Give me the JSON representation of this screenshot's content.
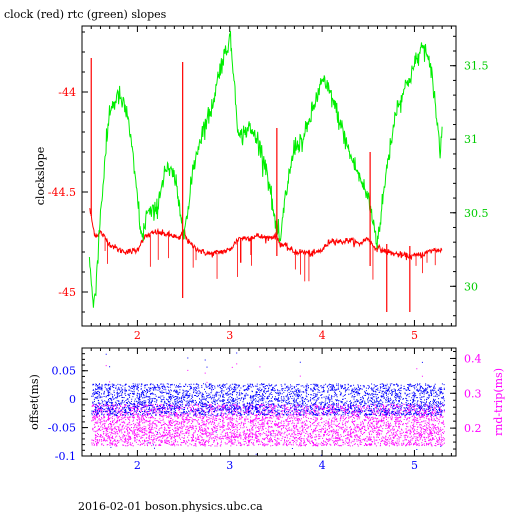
{
  "title": "clock (red) rtc (green) slopes",
  "footer": "2016-02-01 boson.physics.ubc.ca",
  "colors": {
    "clock": "#ff0000",
    "rtc": "#00ee00",
    "offset": "#0000ff",
    "rnd_trip": "#ff00ff",
    "axis": "#000000"
  },
  "chart_data": [
    {
      "type": "line",
      "title": "clock (red) rtc (green) slopes",
      "xlim": [
        1.4,
        5.45
      ],
      "x_ticks": [
        2,
        3,
        4,
        5
      ],
      "x_tick_labels": [
        "2",
        "3",
        "4",
        "5"
      ],
      "y_left": {
        "label": "clockslope",
        "lim": [
          -45.17,
          -43.67
        ],
        "ticks": [
          -44,
          -44.5,
          -45
        ],
        "tick_labels": [
          "-44",
          "-44.5",
          "-45"
        ]
      },
      "y_right": {
        "label": "",
        "lim": [
          29.73,
          31.77
        ],
        "ticks": [
          30,
          30.5,
          31,
          31.5
        ],
        "tick_labels": [
          "30",
          "30.5",
          "31",
          "31.5"
        ]
      },
      "series": [
        {
          "key": "clock",
          "axis": "left",
          "x": [
            1.48,
            1.5,
            1.52,
            1.55,
            1.6,
            1.7,
            1.8,
            1.9,
            2.0,
            2.05,
            2.1,
            2.2,
            2.3,
            2.4,
            2.45,
            2.5,
            2.55,
            2.6,
            2.7,
            2.8,
            2.9,
            3.0,
            3.1,
            3.2,
            3.3,
            3.4,
            3.5,
            3.55,
            3.6,
            3.7,
            3.8,
            3.9,
            4.0,
            4.1,
            4.2,
            4.3,
            4.4,
            4.5,
            4.55,
            4.6,
            4.7,
            4.8,
            4.9,
            5.0,
            5.1,
            5.2,
            5.3
          ],
          "y": [
            -44.58,
            -44.62,
            -44.68,
            -44.72,
            -44.7,
            -44.76,
            -44.79,
            -44.8,
            -44.79,
            -44.74,
            -44.72,
            -44.7,
            -44.71,
            -44.72,
            -44.74,
            -44.69,
            -44.75,
            -44.77,
            -44.8,
            -44.81,
            -44.8,
            -44.79,
            -44.73,
            -44.73,
            -44.72,
            -44.73,
            -44.72,
            -44.76,
            -44.77,
            -44.8,
            -44.8,
            -44.81,
            -44.79,
            -44.74,
            -44.75,
            -44.74,
            -44.76,
            -44.73,
            -44.77,
            -44.78,
            -44.8,
            -44.81,
            -44.82,
            -44.82,
            -44.81,
            -44.79,
            -44.79
          ]
        },
        {
          "key": "rtc",
          "axis": "right",
          "x": [
            1.48,
            1.52,
            1.55,
            1.6,
            1.7,
            1.8,
            1.9,
            2.0,
            2.05,
            2.1,
            2.2,
            2.3,
            2.4,
            2.45,
            2.5,
            2.55,
            2.6,
            2.7,
            2.8,
            2.9,
            2.95,
            3.0,
            3.05,
            3.1,
            3.2,
            3.3,
            3.4,
            3.5,
            3.55,
            3.6,
            3.7,
            3.8,
            3.9,
            4.0,
            4.1,
            4.2,
            4.3,
            4.4,
            4.5,
            4.55,
            4.6,
            4.7,
            4.8,
            4.9,
            5.0,
            5.1,
            5.2,
            5.28,
            5.3
          ],
          "y": [
            30.2,
            29.86,
            30.0,
            30.5,
            31.2,
            31.3,
            31.15,
            30.6,
            30.3,
            30.5,
            30.5,
            30.8,
            30.75,
            30.55,
            30.4,
            30.5,
            30.8,
            31.05,
            31.2,
            31.5,
            31.58,
            31.7,
            31.4,
            31.0,
            31.08,
            31.0,
            30.8,
            30.4,
            30.3,
            30.6,
            30.95,
            31.0,
            31.2,
            31.4,
            31.3,
            31.1,
            30.9,
            30.75,
            30.6,
            30.45,
            30.3,
            30.8,
            31.2,
            31.35,
            31.5,
            31.65,
            31.4,
            30.9,
            31.1
          ]
        }
      ],
      "spikes": [
        {
          "series": "clock",
          "x": 1.5,
          "y_top": -43.83,
          "y_bottom": -44.62
        },
        {
          "series": "clock",
          "x": 2.49,
          "y_top": -43.85,
          "y_bottom": -45.03
        },
        {
          "series": "clock",
          "x": 3.51,
          "y_top": -44.18,
          "y_bottom": -44.82
        },
        {
          "series": "clock",
          "x": 4.52,
          "y_top": -44.3,
          "y_bottom": -44.87
        },
        {
          "series": "clock",
          "x": 4.7,
          "y_top": -44.76,
          "y_bottom": -45.1
        },
        {
          "series": "clock",
          "x": 4.95,
          "y_top": -44.77,
          "y_bottom": -45.1
        }
      ]
    },
    {
      "type": "scatter",
      "xlim": [
        1.4,
        5.45
      ],
      "x_ticks": [
        2,
        3,
        4,
        5
      ],
      "x_tick_labels": [
        "2",
        "3",
        "4",
        "5"
      ],
      "y_left": {
        "label": "offset(ms)",
        "lim": [
          -0.1,
          0.09
        ],
        "ticks": [
          0.05,
          0,
          -0.05,
          -0.1
        ],
        "tick_labels": [
          "0.05",
          "0",
          "-0.05",
          "-0.1"
        ]
      },
      "y_right": {
        "label": "rnd-trip(ms)",
        "lim": [
          0.12,
          0.43
        ],
        "ticks": [
          0.2,
          0.3,
          0.4
        ],
        "tick_labels": [
          "0.2",
          "0.3",
          "0.4"
        ]
      },
      "series": [
        {
          "key": "offset",
          "axis": "left",
          "x_range": [
            1.5,
            5.32
          ],
          "y_center": 0.0,
          "y_spread": 0.028
        },
        {
          "key": "rnd_trip",
          "axis": "right",
          "x_range": [
            1.5,
            5.32
          ],
          "y_center": 0.21,
          "y_spread": 0.06
        }
      ]
    }
  ]
}
